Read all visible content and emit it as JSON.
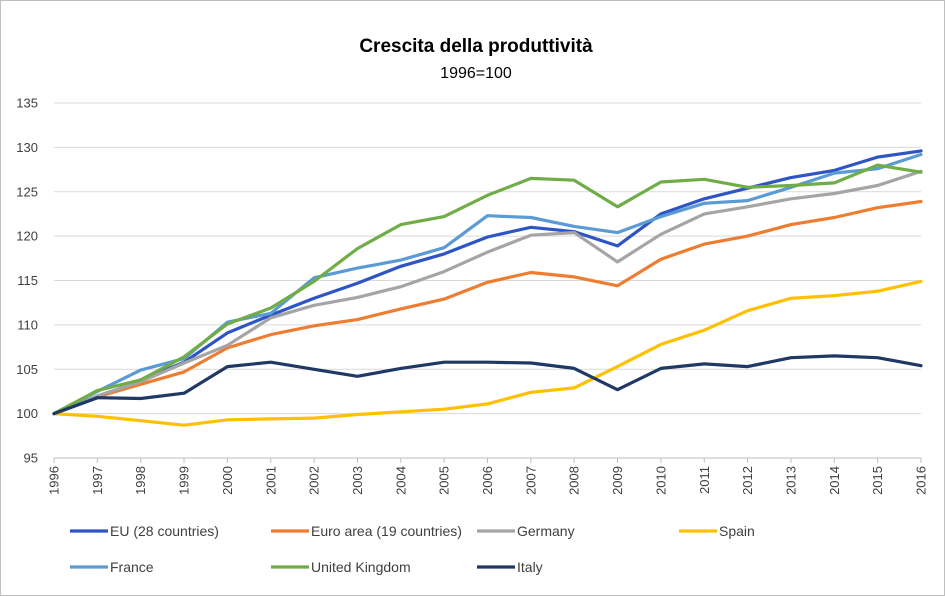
{
  "chart_data": {
    "type": "line",
    "title": "Crescita della produttività",
    "subtitle": "1996=100",
    "xlabel": "",
    "ylabel": "",
    "ylim": [
      95,
      135
    ],
    "y_ticks": [
      95,
      100,
      105,
      110,
      115,
      120,
      125,
      130,
      135
    ],
    "grid": true,
    "legend_position": "bottom",
    "categories": [
      "1996",
      "1997",
      "1998",
      "1999",
      "2000",
      "2001",
      "2002",
      "2003",
      "2004",
      "2005",
      "2006",
      "2007",
      "2008",
      "2009",
      "2010",
      "2011",
      "2012",
      "2013",
      "2014",
      "2015",
      "2016"
    ],
    "series": [
      {
        "name": "EU (28 countries)",
        "color": "#2F55C5",
        "values": [
          100,
          101.8,
          103.8,
          105.8,
          109.1,
          111.1,
          113.0,
          114.7,
          116.6,
          118.0,
          119.9,
          121.0,
          120.5,
          118.9,
          122.5,
          124.2,
          125.4,
          126.6,
          127.4,
          128.9,
          129.6
        ]
      },
      {
        "name": "Euro area (19 countries)",
        "color": "#ED7D31",
        "values": [
          100,
          101.9,
          103.3,
          104.7,
          107.4,
          108.9,
          109.9,
          110.6,
          111.8,
          112.9,
          114.8,
          115.9,
          115.4,
          114.4,
          117.4,
          119.1,
          120.0,
          121.3,
          122.1,
          123.2,
          123.9
        ]
      },
      {
        "name": "Germany",
        "color": "#A5A5A5",
        "values": [
          100,
          102.0,
          103.6,
          105.7,
          107.7,
          110.8,
          112.2,
          113.1,
          114.3,
          116.0,
          118.2,
          120.1,
          120.4,
          117.1,
          120.2,
          122.5,
          123.3,
          124.2,
          124.8,
          125.7,
          127.3
        ]
      },
      {
        "name": "Spain",
        "color": "#FFC000",
        "values": [
          100,
          99.7,
          99.2,
          98.7,
          99.3,
          99.4,
          99.5,
          99.9,
          100.2,
          100.5,
          101.1,
          102.4,
          102.9,
          105.3,
          107.8,
          109.4,
          111.6,
          113.0,
          113.3,
          113.8,
          114.9
        ]
      },
      {
        "name": "France",
        "color": "#5B9BD5",
        "values": [
          100,
          102.5,
          104.9,
          106.2,
          110.3,
          111.3,
          115.3,
          116.4,
          117.3,
          118.7,
          122.3,
          122.1,
          121.1,
          120.4,
          122.2,
          123.7,
          124.0,
          125.5,
          127.1,
          127.6,
          129.2
        ]
      },
      {
        "name": "United Kingdom",
        "color": "#70AD47",
        "values": [
          100,
          102.6,
          103.8,
          106.4,
          110.1,
          111.9,
          114.9,
          118.6,
          121.3,
          122.2,
          124.6,
          126.5,
          126.3,
          123.3,
          126.1,
          126.4,
          125.5,
          125.7,
          126.0,
          128.0,
          127.2
        ]
      },
      {
        "name": "Italy",
        "color": "#203864",
        "values": [
          100,
          101.8,
          101.7,
          102.3,
          105.3,
          105.8,
          105.0,
          104.2,
          105.1,
          105.8,
          105.8,
          105.7,
          105.1,
          102.7,
          105.1,
          105.6,
          105.3,
          106.3,
          106.5,
          106.3,
          105.4
        ]
      }
    ]
  }
}
